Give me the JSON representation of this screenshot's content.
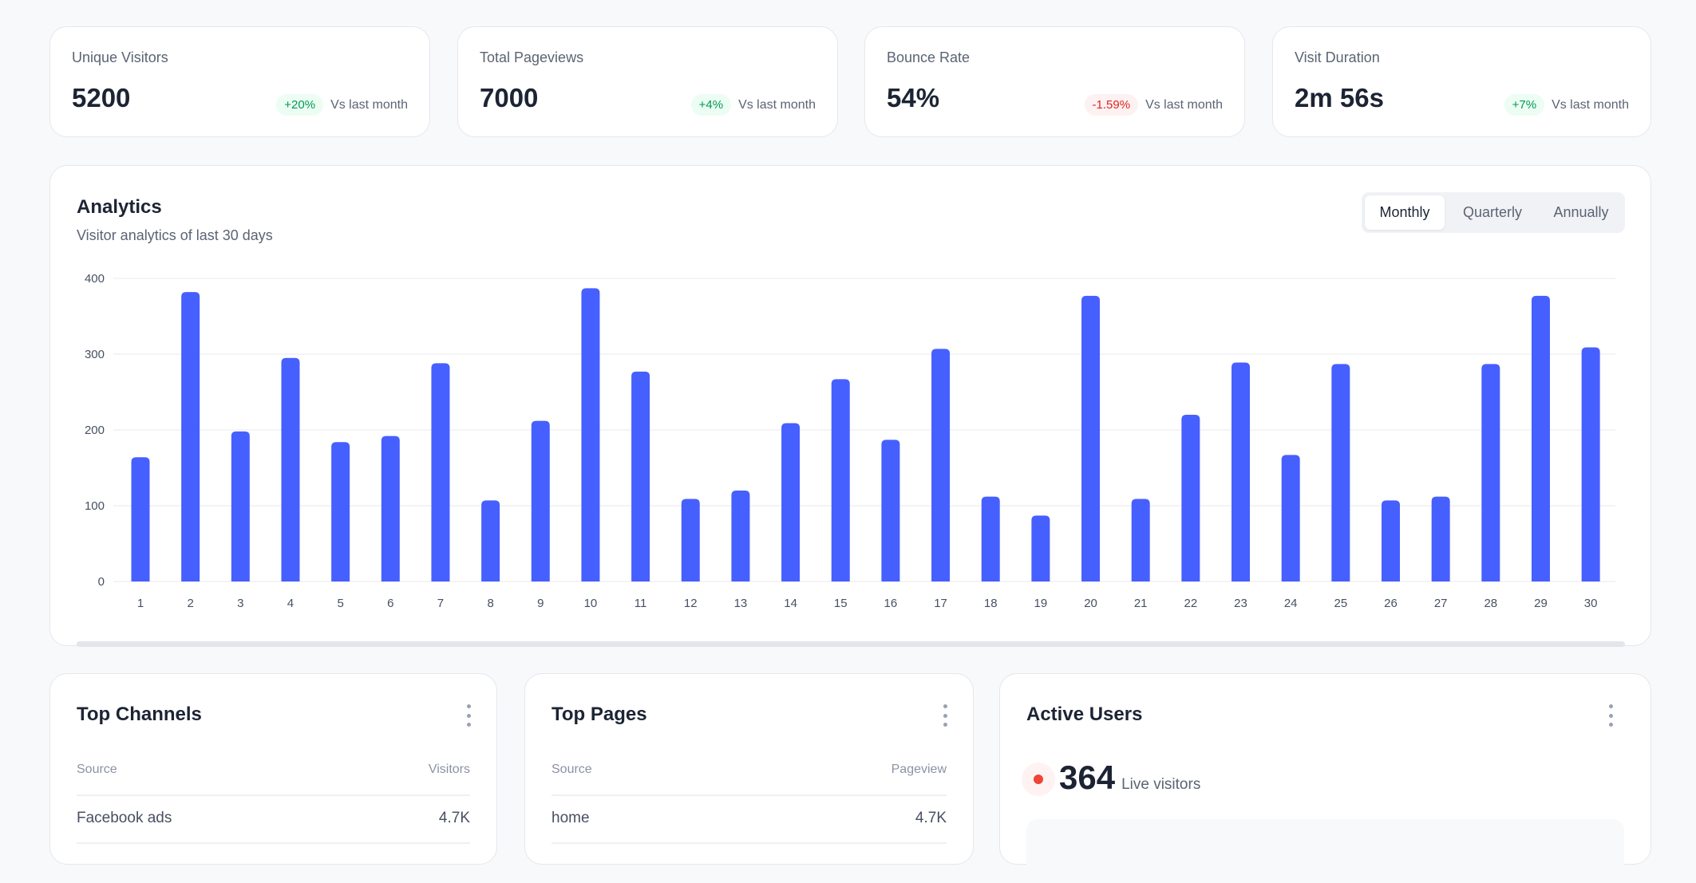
{
  "stats": [
    {
      "label": "Unique Visitors",
      "value": "5200",
      "change": "+20%",
      "trend": "up",
      "compare": "Vs last month"
    },
    {
      "label": "Total Pageviews",
      "value": "7000",
      "change": "+4%",
      "trend": "up",
      "compare": "Vs last month"
    },
    {
      "label": "Bounce Rate",
      "value": "54%",
      "change": "-1.59%",
      "trend": "down",
      "compare": "Vs last month"
    },
    {
      "label": "Visit Duration",
      "value": "2m 56s",
      "change": "+7%",
      "trend": "up",
      "compare": "Vs last month"
    }
  ],
  "analytics": {
    "title": "Analytics",
    "subtitle": "Visitor analytics of last 30 days",
    "periods": [
      "Monthly",
      "Quarterly",
      "Annually"
    ],
    "selected_period": "Monthly"
  },
  "chart_data": {
    "type": "bar",
    "categories": [
      "1",
      "2",
      "3",
      "4",
      "5",
      "6",
      "7",
      "8",
      "9",
      "10",
      "11",
      "12",
      "13",
      "14",
      "15",
      "16",
      "17",
      "18",
      "19",
      "20",
      "21",
      "22",
      "23",
      "24",
      "25",
      "26",
      "27",
      "28",
      "29",
      "30"
    ],
    "values": [
      164,
      382,
      198,
      295,
      184,
      192,
      288,
      107,
      212,
      387,
      277,
      109,
      120,
      209,
      267,
      187,
      307,
      112,
      87,
      377,
      109,
      220,
      289,
      167,
      287,
      107,
      112,
      287,
      377,
      309
    ],
    "ylim": [
      0,
      400
    ],
    "yticks": [
      0,
      100,
      200,
      300,
      400
    ],
    "grid": true,
    "color": "#465fff"
  },
  "top_channels": {
    "title": "Top Channels",
    "col1": "Source",
    "col2": "Visitors",
    "rows": [
      {
        "name": "Facebook ads",
        "value": "4.7K"
      }
    ]
  },
  "top_pages": {
    "title": "Top Pages",
    "col1": "Source",
    "col2": "Pageview",
    "rows": [
      {
        "name": "home",
        "value": "4.7K"
      }
    ]
  },
  "active_users": {
    "title": "Active Users",
    "count": "364",
    "label": "Live visitors",
    "dot_color": "#f04438"
  }
}
